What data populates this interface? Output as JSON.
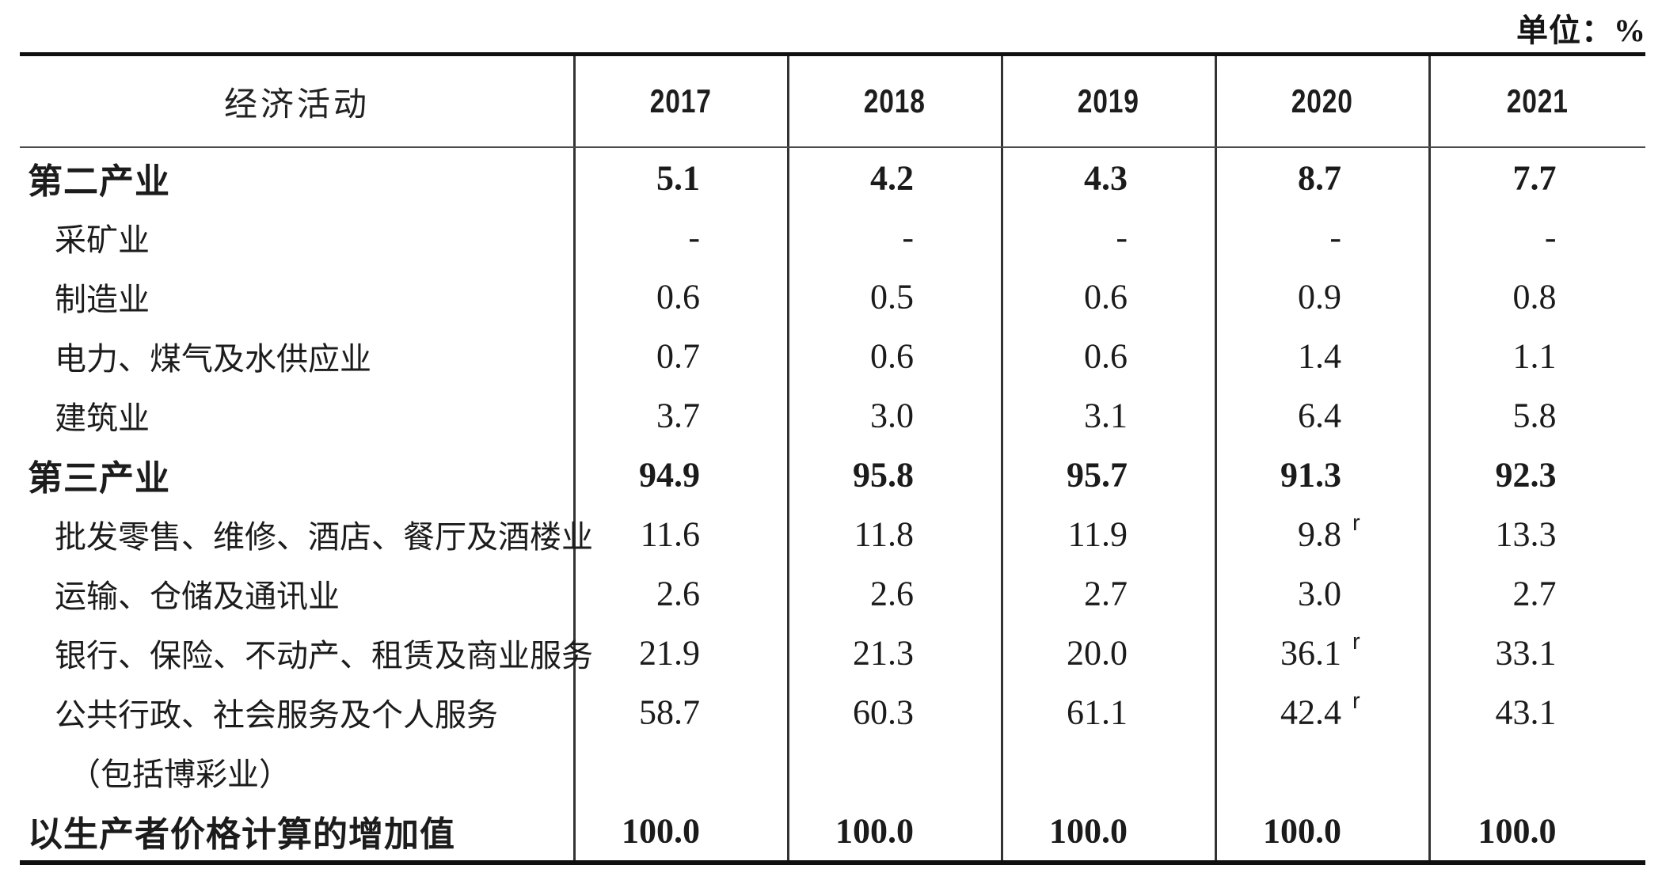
{
  "unit_label": "单位：%",
  "header": {
    "activity_label": "经济活动",
    "years": [
      "2017",
      "2018",
      "2019",
      "2020",
      "2021"
    ]
  },
  "revision_marker": "r",
  "rows": [
    {
      "label": "第二产业",
      "bold": true,
      "indent": 0,
      "values": [
        "5.1",
        "4.2",
        "4.3",
        "8.7",
        "7.7"
      ],
      "revised_cols": []
    },
    {
      "label": "采矿业",
      "bold": false,
      "indent": 1,
      "values": [
        "-",
        "-",
        "-",
        "-",
        "-"
      ],
      "revised_cols": []
    },
    {
      "label": "制造业",
      "bold": false,
      "indent": 1,
      "values": [
        "0.6",
        "0.5",
        "0.6",
        "0.9",
        "0.8"
      ],
      "revised_cols": []
    },
    {
      "label": "电力、煤气及水供应业",
      "bold": false,
      "indent": 1,
      "values": [
        "0.7",
        "0.6",
        "0.6",
        "1.4",
        "1.1"
      ],
      "revised_cols": []
    },
    {
      "label": "建筑业",
      "bold": false,
      "indent": 1,
      "values": [
        "3.7",
        "3.0",
        "3.1",
        "6.4",
        "5.8"
      ],
      "revised_cols": []
    },
    {
      "label": "第三产业",
      "bold": true,
      "indent": 0,
      "values": [
        "94.9",
        "95.8",
        "95.7",
        "91.3",
        "92.3"
      ],
      "revised_cols": []
    },
    {
      "label": "批发零售、维修、酒店、餐厅及酒楼业",
      "bold": false,
      "indent": 1,
      "values": [
        "11.6",
        "11.8",
        "11.9",
        "9.8",
        "13.3"
      ],
      "revised_cols": [
        3
      ]
    },
    {
      "label": "运输、仓储及通讯业",
      "bold": false,
      "indent": 1,
      "values": [
        "2.6",
        "2.6",
        "2.7",
        "3.0",
        "2.7"
      ],
      "revised_cols": []
    },
    {
      "label": "银行、保险、不动产、租赁及商业服务",
      "bold": false,
      "indent": 1,
      "values": [
        "21.9",
        "21.3",
        "20.0",
        "36.1",
        "33.1"
      ],
      "revised_cols": [
        3
      ]
    },
    {
      "label": "公共行政、社会服务及个人服务",
      "bold": false,
      "indent": 1,
      "values": [
        "58.7",
        "60.3",
        "61.1",
        "42.4",
        "43.1"
      ],
      "revised_cols": [
        3
      ]
    },
    {
      "label": "（包括博彩业）",
      "bold": false,
      "indent": 2,
      "values": [
        "",
        "",
        "",
        "",
        ""
      ],
      "revised_cols": []
    },
    {
      "label": "以生产者价格计算的增加值",
      "bold": true,
      "indent": 0,
      "values": [
        "100.0",
        "100.0",
        "100.0",
        "100.0",
        "100.0"
      ],
      "revised_cols": []
    }
  ]
}
